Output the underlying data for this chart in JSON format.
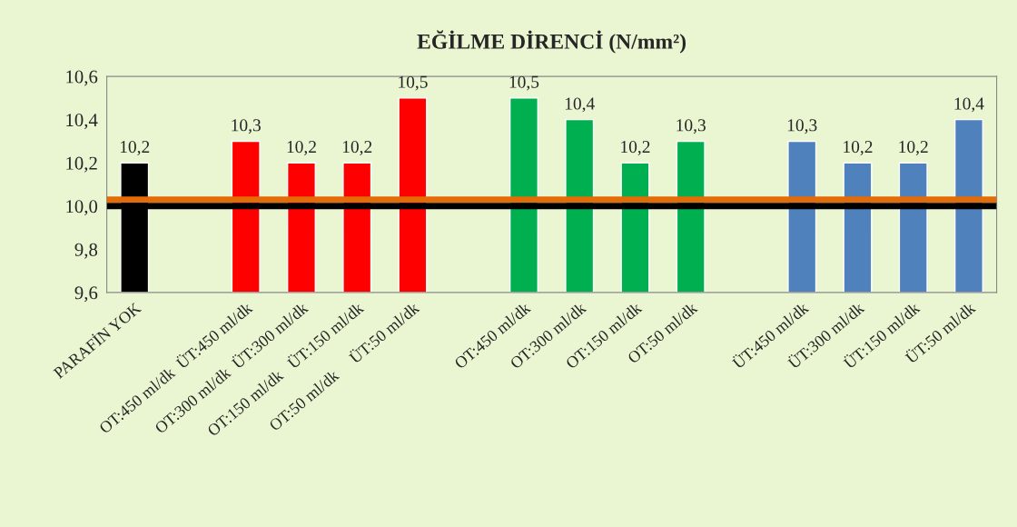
{
  "chart_data": {
    "type": "bar",
    "title": "EĞİLME DİRENCİ (N/mm²)",
    "categories": [
      "PARAFİN YOK",
      null,
      "OT:450 ml/dk  ÜT:450 ml/dk",
      "OT:300 ml/dk  ÜT:300 ml/dk",
      "OT:150 ml/dk   ÜT:150 ml/dk",
      "OT:50 ml/dk     ÜT:50 ml/dk",
      null,
      "OT:450 ml/dk",
      "OT:300 ml/dk",
      "OT:150 ml/dk",
      "OT:50 ml/dk",
      null,
      "ÜT:450 ml/dk",
      "ÜT:300 ml/dk",
      "ÜT:150 ml/dk",
      "ÜT:50 ml/dk"
    ],
    "values": [
      10.2,
      null,
      10.3,
      10.2,
      10.2,
      10.5,
      null,
      10.5,
      10.4,
      10.2,
      10.3,
      null,
      10.3,
      10.2,
      10.2,
      10.4
    ],
    "colors": [
      "#000000",
      null,
      "#ff0000",
      "#ff0000",
      "#ff0000",
      "#ff0000",
      null,
      "#00b050",
      "#00b050",
      "#00b050",
      "#00b050",
      null,
      "#4f81bd",
      "#4f81bd",
      "#4f81bd",
      "#4f81bd"
    ],
    "value_labels": [
      "10,2",
      null,
      "10,3",
      "10,2",
      "10,2",
      "10,5",
      null,
      "10,5",
      "10,4",
      "10,2",
      "10,3",
      null,
      "10,3",
      "10,2",
      "10,2",
      "10,4"
    ],
    "ylim": [
      9.6,
      10.6
    ],
    "yticks": [
      {
        "value": 9.6,
        "label": "9,6"
      },
      {
        "value": 9.8,
        "label": "9,8"
      },
      {
        "value": 10.0,
        "label": "10,0"
      },
      {
        "value": 10.2,
        "label": "10,2"
      },
      {
        "value": 10.4,
        "label": "10,4"
      },
      {
        "value": 10.6,
        "label": "10,6"
      }
    ],
    "ref_lines": [
      {
        "axis": "y",
        "value": 10.0,
        "color": "#000000"
      },
      {
        "axis": "y",
        "value": 10.03,
        "color": "#e36c09"
      }
    ],
    "grid": false,
    "legend": false
  }
}
